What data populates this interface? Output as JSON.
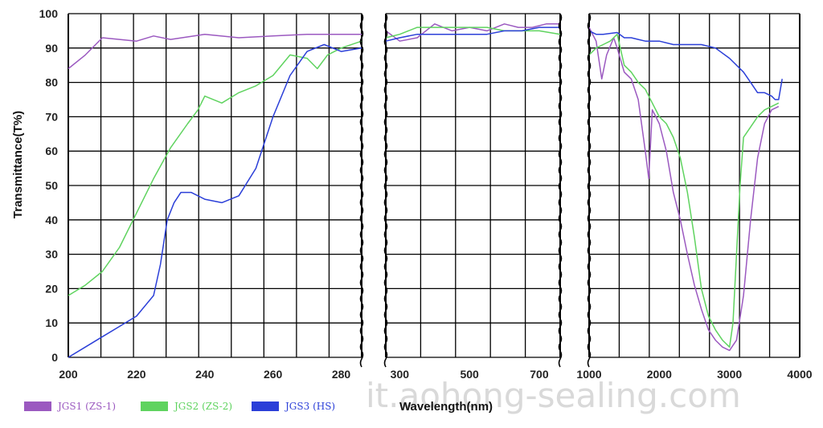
{
  "colors": {
    "jgs1": "#9b59c0",
    "jgs2": "#5fd35f",
    "jgs3": "#2b3fd8",
    "grid": "#000000"
  },
  "watermark": "it.aohong-sealing.com",
  "chart_data": {
    "type": "line",
    "ylabel": "Transmittance(T%)",
    "xlabel": "Wavelength(nm)",
    "ylim": [
      0,
      100
    ],
    "yticks": [
      "0",
      "10",
      "20",
      "30",
      "40",
      "50",
      "60",
      "70",
      "80",
      "90",
      "100"
    ],
    "grid": true,
    "legend_position": "bottom-left",
    "legend": [
      "JGS1 (ZS-1)",
      "JGS2 (ZS-2)",
      "JGS3 (HS)"
    ],
    "panels": [
      {
        "xlim": [
          200,
          286
        ],
        "xticks": [
          200,
          220,
          240,
          260,
          280
        ],
        "xtick_labels": [
          "200",
          "220",
          "240",
          "260",
          "280"
        ],
        "series": [
          {
            "name": "JGS1 (ZS-1)",
            "x": [
              200,
              205,
              210,
              215,
              220,
              225,
              230,
              240,
              250,
              260,
              270,
              280,
              286
            ],
            "y": [
              84,
              88,
              93,
              92.5,
              92,
              93.5,
              92.5,
              94,
              93,
              93.5,
              94,
              94,
              94
            ]
          },
          {
            "name": "JGS2 (ZS-2)",
            "x": [
              200,
              205,
              210,
              215,
              220,
              225,
              230,
              235,
              238,
              240,
              245,
              250,
              255,
              260,
              265,
              270,
              273,
              276,
              280,
              286
            ],
            "y": [
              18,
              21,
              25,
              32,
              42,
              52,
              61,
              68,
              72,
              76,
              74,
              77,
              79,
              82,
              88,
              87,
              84,
              88,
              90,
              92
            ]
          },
          {
            "name": "JGS3 (HS)",
            "x": [
              200,
              205,
              210,
              215,
              220,
              225,
              227,
              229,
              231,
              233,
              236,
              240,
              245,
              250,
              255,
              260,
              265,
              270,
              275,
              280,
              286
            ],
            "y": [
              0,
              3,
              6,
              9,
              12,
              18,
              27,
              40,
              45,
              48,
              48,
              46,
              45,
              47,
              55,
              70,
              82,
              89,
              91,
              89,
              90
            ]
          }
        ]
      },
      {
        "xlim": [
          260,
          760
        ],
        "xticks": [
          300,
          500,
          700
        ],
        "xtick_labels": [
          "300",
          "500",
          "700"
        ],
        "series": [
          {
            "name": "JGS1 (ZS-1)",
            "x": [
              260,
              300,
              350,
              400,
              450,
              500,
              550,
              600,
              640,
              680,
              720,
              760
            ],
            "y": [
              95,
              92,
              93,
              97,
              95,
              96,
              95,
              97,
              96,
              96,
              97,
              97
            ]
          },
          {
            "name": "JGS2 (ZS-2)",
            "x": [
              260,
              300,
              350,
              400,
              450,
              500,
              550,
              600,
              650,
              700,
              760
            ],
            "y": [
              93,
              94,
              96,
              96,
              96,
              96,
              96,
              95,
              95,
              95,
              94
            ]
          },
          {
            "name": "JGS3 (HS)",
            "x": [
              260,
              300,
              350,
              400,
              450,
              500,
              550,
              600,
              650,
              700,
              760
            ],
            "y": [
              92,
              93,
              94,
              94,
              94,
              94,
              94,
              95,
              95,
              96,
              96
            ]
          }
        ]
      },
      {
        "xlim": [
          1000,
          4000
        ],
        "xticks": [
          1000,
          2000,
          3000,
          4000
        ],
        "xtick_labels": [
          "1000",
          "2000",
          "3000",
          "4000"
        ],
        "series": [
          {
            "name": "JGS1 (ZS-1)",
            "x": [
              1000,
              1100,
              1180,
              1250,
              1350,
              1400,
              1500,
              1600,
              1700,
              1800,
              1850,
              1900,
              1950,
              2000,
              2100,
              2200,
              2300,
              2400,
              2500,
              2600,
              2700,
              2800,
              2900,
              3000,
              3100,
              3200,
              3300,
              3400,
              3500,
              3600,
              3700
            ],
            "y": [
              96,
              92,
              81,
              88,
              93,
              90,
              83,
              81,
              75,
              60,
              52,
              72,
              70,
              68,
              60,
              48,
              40,
              30,
              21,
              14,
              8,
              5,
              3,
              2,
              5,
              18,
              40,
              58,
              68,
              72,
              73
            ]
          },
          {
            "name": "JGS2 (ZS-2)",
            "x": [
              1000,
              1100,
              1200,
              1300,
              1400,
              1500,
              1600,
              1700,
              1800,
              1900,
              2000,
              2100,
              2200,
              2300,
              2400,
              2500,
              2600,
              2700,
              2800,
              2900,
              3000,
              3050,
              3100,
              3150,
              3200,
              3300,
              3400,
              3500,
              3600,
              3700
            ],
            "y": [
              88,
              90,
              91,
              92,
              94,
              85,
              83,
              80,
              78,
              74,
              70,
              68,
              64,
              58,
              48,
              35,
              20,
              12,
              8,
              5,
              3,
              10,
              30,
              50,
              64,
              67,
              70,
              72,
              73,
              74
            ]
          },
          {
            "name": "JGS3 (HS)",
            "x": [
              1000,
              1100,
              1200,
              1400,
              1500,
              1600,
              1700,
              1800,
              2000,
              2200,
              2400,
              2600,
              2800,
              3000,
              3200,
              3300,
              3400,
              3500,
              3600,
              3650,
              3700,
              3750
            ],
            "y": [
              95,
              94,
              94,
              94.5,
              93,
              93,
              92.5,
              92,
              92,
              91,
              91,
              91,
              90,
              87,
              83,
              80,
              77,
              77,
              76,
              75,
              75,
              81
            ]
          }
        ]
      }
    ]
  }
}
